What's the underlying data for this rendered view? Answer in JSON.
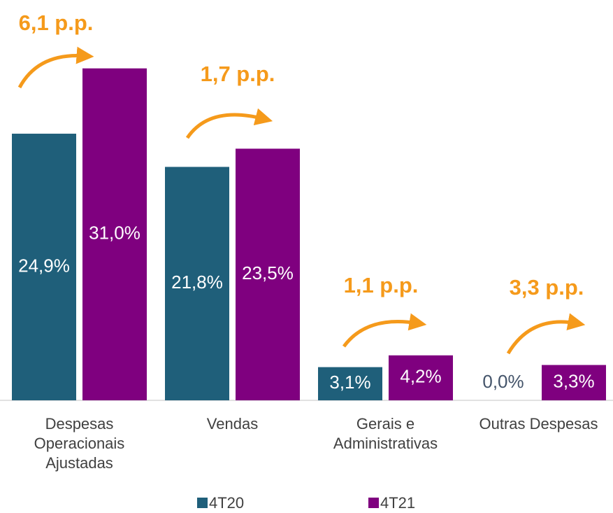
{
  "chart_data": {
    "type": "bar",
    "categories": [
      "Despesas Operacionais Ajustadas",
      "Vendas",
      "Gerais e Administrativas",
      "Outras Despesas"
    ],
    "series": [
      {
        "name": "4T20",
        "color": "#1f5f7a",
        "values": [
          24.9,
          21.8,
          3.1,
          0.0
        ],
        "value_labels": [
          "24,9%",
          "21,8%",
          "3,1%",
          "0,0%"
        ]
      },
      {
        "name": "4T21",
        "color": "#7f007f",
        "values": [
          31.0,
          23.5,
          4.2,
          3.3
        ],
        "value_labels": [
          "31,0%",
          "23,5%",
          "4,2%",
          "3,3%"
        ]
      }
    ],
    "annotations": [
      "6,1 p.p.",
      "1,7 p.p.",
      "1,1 p.p.",
      "3,3 p.p."
    ],
    "annotation_color": "#f59a1b"
  }
}
